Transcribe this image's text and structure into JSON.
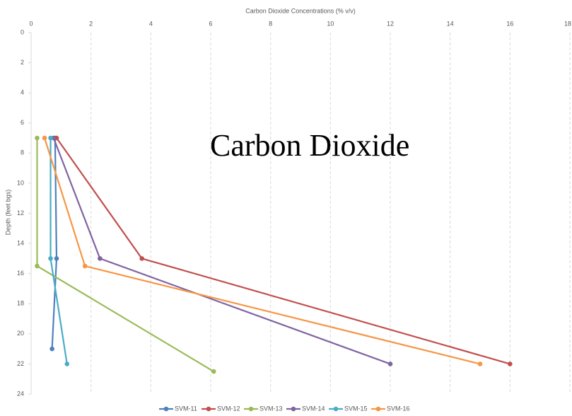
{
  "chart_data": {
    "type": "line",
    "title": "Carbon Dioxide Concentrations (% v/v)",
    "y_label": "Depth (feet bgs)",
    "annotation": "Carbon Dioxide",
    "xlim": [
      0,
      18
    ],
    "xticks": [
      0,
      2,
      4,
      6,
      8,
      10,
      12,
      14,
      16,
      18
    ],
    "ylim": [
      0,
      24
    ],
    "yticks": [
      0,
      2,
      4,
      6,
      8,
      10,
      12,
      14,
      16,
      18,
      20,
      22,
      24
    ],
    "y_inverted": true,
    "x_axis_top": true,
    "grid": true,
    "legend": "bottom",
    "series": [
      {
        "name": "SVM-11",
        "color": "#4f81bd",
        "x": [
          0.8,
          0.85,
          0.7
        ],
        "values": [
          7,
          15,
          21
        ]
      },
      {
        "name": "SVM-12",
        "color": "#c0504d",
        "x": [
          0.85,
          3.7,
          16
        ],
        "values": [
          7,
          15,
          22
        ]
      },
      {
        "name": "SVM-13",
        "color": "#9bbb59",
        "x": [
          0.2,
          0.2,
          6.1
        ],
        "values": [
          7,
          15.5,
          22.5
        ]
      },
      {
        "name": "SVM-14",
        "color": "#8064a2",
        "x": [
          0.75,
          2.3,
          12
        ],
        "values": [
          7,
          15,
          22
        ]
      },
      {
        "name": "SVM-15",
        "color": "#4bacc6",
        "x": [
          0.65,
          0.65,
          1.2
        ],
        "values": [
          7,
          15,
          22
        ]
      },
      {
        "name": "SVM-16",
        "color": "#f79646",
        "x": [
          0.45,
          1.8,
          15
        ],
        "values": [
          7,
          15.5,
          22
        ]
      }
    ]
  }
}
